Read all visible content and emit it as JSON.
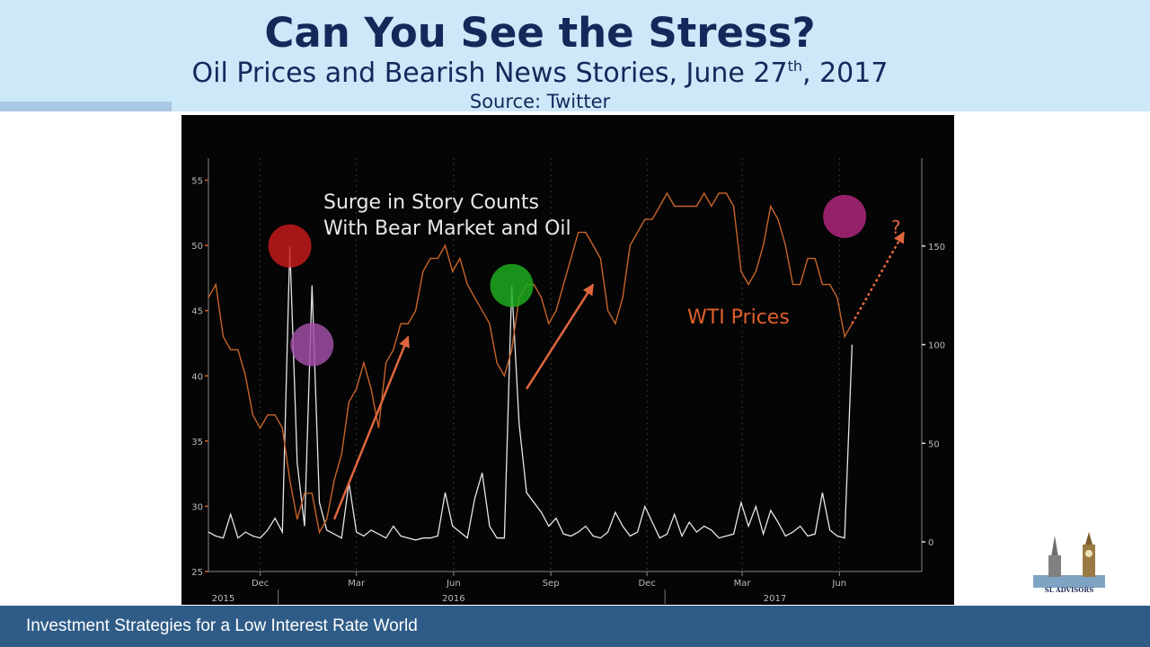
{
  "header": {
    "title": "Can You See the Stress?",
    "subtitle_main": "Oil Prices and Bearish News Stories, June 27",
    "subtitle_sup": "th",
    "subtitle_end": ", 2017",
    "source": "Source: Twitter"
  },
  "footer": {
    "text": "Investment Strategies for a Low Interest Rate World"
  },
  "logo": {
    "text": "SL ADVISORS"
  },
  "chart_data": {
    "type": "line",
    "annotations": {
      "surge_label_line1": "Surge in Story Counts",
      "surge_label_line2": "With Bear Market and Oil",
      "wti_label": "WTI Prices",
      "question_mark": "?"
    },
    "colors": {
      "background": "#050505",
      "wti": "#c8642a",
      "stories": "#e6e6e6",
      "arrow": "#e06640",
      "circle_red": "#c41a1a",
      "circle_purple": "#a04fa6",
      "circle_green": "#1faa1f",
      "circle_magenta": "#b0277e"
    },
    "x_axis": {
      "months": [
        "Dec",
        "Mar",
        "Jun",
        "Sep",
        "Dec",
        "Mar",
        "Jun"
      ],
      "years": [
        "2015",
        "2016",
        "2017"
      ]
    },
    "y_left": {
      "ticks": [
        "25",
        "30",
        "35",
        "40",
        "45",
        "50",
        "55"
      ],
      "ylim": [
        25,
        56
      ]
    },
    "y_right": {
      "ticks": [
        "0",
        "50",
        "100",
        "150"
      ],
      "ylim": [
        -15,
        190
      ]
    },
    "series": [
      {
        "name": "WTI Prices",
        "axis": "left",
        "x": [
          "2015-10-27",
          "2015-11-03",
          "2015-11-10",
          "2015-11-17",
          "2015-11-24",
          "2015-12-01",
          "2015-12-08",
          "2015-12-15",
          "2015-12-22",
          "2015-12-29",
          "2016-01-05",
          "2016-01-12",
          "2016-01-19",
          "2016-01-26",
          "2016-02-02",
          "2016-02-09",
          "2016-02-16",
          "2016-02-23",
          "2016-03-01",
          "2016-03-08",
          "2016-03-15",
          "2016-03-22",
          "2016-03-29",
          "2016-04-05",
          "2016-04-12",
          "2016-04-19",
          "2016-04-26",
          "2016-05-03",
          "2016-05-10",
          "2016-05-17",
          "2016-05-24",
          "2016-05-31",
          "2016-06-07",
          "2016-06-14",
          "2016-06-21",
          "2016-06-28",
          "2016-07-05",
          "2016-07-12",
          "2016-07-19",
          "2016-07-26",
          "2016-08-02",
          "2016-08-09",
          "2016-08-16",
          "2016-08-23",
          "2016-08-30",
          "2016-09-06",
          "2016-09-13",
          "2016-09-20",
          "2016-09-27",
          "2016-10-04",
          "2016-10-11",
          "2016-10-18",
          "2016-10-25",
          "2016-11-01",
          "2016-11-08",
          "2016-11-15",
          "2016-11-22",
          "2016-11-29",
          "2016-12-06",
          "2016-12-13",
          "2016-12-20",
          "2016-12-27",
          "2017-01-03",
          "2017-01-10",
          "2017-01-17",
          "2017-01-24",
          "2017-01-31",
          "2017-02-07",
          "2017-02-14",
          "2017-02-21",
          "2017-02-28",
          "2017-03-07",
          "2017-03-14",
          "2017-03-21",
          "2017-03-28",
          "2017-04-04",
          "2017-04-11",
          "2017-04-18",
          "2017-04-25",
          "2017-05-02",
          "2017-05-09",
          "2017-05-16",
          "2017-05-23",
          "2017-05-30",
          "2017-06-06",
          "2017-06-13",
          "2017-06-20",
          "2017-06-27"
        ],
        "values": [
          46,
          47,
          43,
          42,
          42,
          40,
          37,
          36,
          37,
          37,
          36,
          32,
          29,
          31,
          31,
          28,
          29,
          32,
          34,
          38,
          39,
          41,
          39,
          36,
          41,
          42,
          44,
          44,
          45,
          48,
          49,
          49,
          50,
          48,
          49,
          47,
          46,
          45,
          44,
          41,
          40,
          42,
          46,
          47,
          47,
          46,
          44,
          45,
          47,
          49,
          51,
          51,
          50,
          49,
          45,
          44,
          46,
          50,
          51,
          52,
          52,
          53,
          54,
          53,
          53,
          53,
          53,
          54,
          53,
          54,
          54,
          53,
          48,
          47,
          48,
          50,
          53,
          52,
          50,
          47,
          47,
          49,
          49,
          47,
          47,
          46,
          43,
          44
        ]
      },
      {
        "name": "Story Counts",
        "axis": "right",
        "x": [
          "2015-10-27",
          "2015-11-03",
          "2015-11-10",
          "2015-11-17",
          "2015-11-24",
          "2015-12-01",
          "2015-12-08",
          "2015-12-15",
          "2015-12-22",
          "2015-12-29",
          "2016-01-05",
          "2016-01-12",
          "2016-01-19",
          "2016-01-26",
          "2016-02-02",
          "2016-02-09",
          "2016-02-16",
          "2016-02-23",
          "2016-03-01",
          "2016-03-08",
          "2016-03-15",
          "2016-03-22",
          "2016-03-29",
          "2016-04-05",
          "2016-04-12",
          "2016-04-19",
          "2016-04-26",
          "2016-05-03",
          "2016-05-10",
          "2016-05-17",
          "2016-05-24",
          "2016-05-31",
          "2016-06-07",
          "2016-06-14",
          "2016-06-21",
          "2016-06-28",
          "2016-07-05",
          "2016-07-12",
          "2016-07-19",
          "2016-07-26",
          "2016-08-02",
          "2016-08-09",
          "2016-08-16",
          "2016-08-23",
          "2016-08-30",
          "2016-09-06",
          "2016-09-13",
          "2016-09-20",
          "2016-09-27",
          "2016-10-04",
          "2016-10-11",
          "2016-10-18",
          "2016-10-25",
          "2016-11-01",
          "2016-11-08",
          "2016-11-15",
          "2016-11-22",
          "2016-11-29",
          "2016-12-06",
          "2016-12-13",
          "2016-12-20",
          "2016-12-27",
          "2017-01-03",
          "2017-01-10",
          "2017-01-17",
          "2017-01-24",
          "2017-01-31",
          "2017-02-07",
          "2017-02-14",
          "2017-02-21",
          "2017-02-28",
          "2017-03-07",
          "2017-03-14",
          "2017-03-21",
          "2017-03-28",
          "2017-04-04",
          "2017-04-11",
          "2017-04-18",
          "2017-04-25",
          "2017-05-02",
          "2017-05-09",
          "2017-05-16",
          "2017-05-23",
          "2017-05-30",
          "2017-06-06",
          "2017-06-13",
          "2017-06-20",
          "2017-06-27"
        ],
        "values": [
          5,
          3,
          2,
          14,
          2,
          5,
          3,
          2,
          6,
          12,
          5,
          150,
          40,
          8,
          130,
          20,
          6,
          4,
          2,
          30,
          5,
          3,
          6,
          4,
          2,
          8,
          3,
          2,
          1,
          2,
          2,
          3,
          25,
          8,
          5,
          2,
          22,
          35,
          8,
          2,
          2,
          130,
          60,
          25,
          20,
          15,
          8,
          12,
          4,
          3,
          5,
          8,
          3,
          2,
          5,
          15,
          8,
          3,
          5,
          18,
          10,
          2,
          4,
          14,
          3,
          10,
          5,
          8,
          6,
          2,
          3,
          4,
          20,
          8,
          18,
          4,
          16,
          10,
          3,
          5,
          8,
          3,
          4,
          25,
          6,
          3,
          2,
          100
        ]
      }
    ]
  }
}
